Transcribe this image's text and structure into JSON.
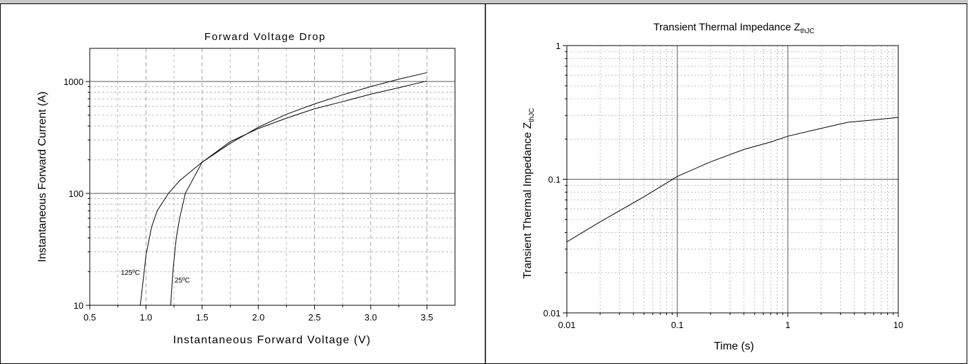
{
  "chart_data": [
    {
      "type": "line",
      "title": "Forward Voltage Drop",
      "xlabel": "Instantaneous Forward Voltage (V)",
      "ylabel": "Instantaneous Forward Current (A)",
      "xlim": [
        0.5,
        3.75
      ],
      "ylim": [
        10,
        2000
      ],
      "yscale": "log",
      "grid": true,
      "x_ticks": [
        "0.5",
        "1.0",
        "1.5",
        "2.0",
        "2.5",
        "3.0",
        "3.5"
      ],
      "y_ticks": [
        "10",
        "100",
        "1000"
      ],
      "series": [
        {
          "name": "125ºC",
          "points": [
            [
              0.95,
              10
            ],
            [
              0.97,
              15
            ],
            [
              1.0,
              28
            ],
            [
              1.05,
              50
            ],
            [
              1.1,
              70
            ],
            [
              1.2,
              100
            ],
            [
              1.3,
              130
            ],
            [
              1.5,
              190
            ],
            [
              1.75,
              280
            ],
            [
              2.0,
              390
            ],
            [
              2.25,
              510
            ],
            [
              2.5,
              630
            ],
            [
              2.75,
              760
            ],
            [
              3.0,
              900
            ],
            [
              3.25,
              1050
            ],
            [
              3.5,
              1200
            ]
          ]
        },
        {
          "name": "25ºC",
          "points": [
            [
              1.22,
              10
            ],
            [
              1.24,
              20
            ],
            [
              1.27,
              40
            ],
            [
              1.3,
              60
            ],
            [
              1.35,
              100
            ],
            [
              1.5,
              190
            ],
            [
              1.75,
              290
            ],
            [
              2.0,
              380
            ],
            [
              2.25,
              470
            ],
            [
              2.5,
              570
            ],
            [
              2.75,
              660
            ],
            [
              3.0,
              770
            ],
            [
              3.25,
              880
            ],
            [
              3.5,
              1010
            ]
          ]
        }
      ]
    },
    {
      "type": "line",
      "title": "Transient Thermal Impedance Z",
      "title_sub": "thJC",
      "xlabel": "Time (s)",
      "ylabel": "Transient Thermal Impedance Z",
      "ylabel_sub": "thJC",
      "xlim": [
        0.01,
        10
      ],
      "ylim": [
        0.01,
        1
      ],
      "xscale": "log",
      "yscale": "log",
      "grid": true,
      "x_ticks": [
        "0.01",
        "0.1",
        "1",
        "10"
      ],
      "y_ticks": [
        "0.01",
        "0.1",
        "1"
      ],
      "series": [
        {
          "points": [
            [
              0.01,
              0.034
            ],
            [
              0.02,
              0.048
            ],
            [
              0.05,
              0.074
            ],
            [
              0.1,
              0.105
            ],
            [
              0.2,
              0.135
            ],
            [
              0.4,
              0.167
            ],
            [
              0.7,
              0.19
            ],
            [
              1.0,
              0.21
            ],
            [
              2.0,
              0.24
            ],
            [
              3.5,
              0.267
            ],
            [
              6.0,
              0.278
            ],
            [
              10.0,
              0.29
            ]
          ]
        }
      ]
    }
  ]
}
